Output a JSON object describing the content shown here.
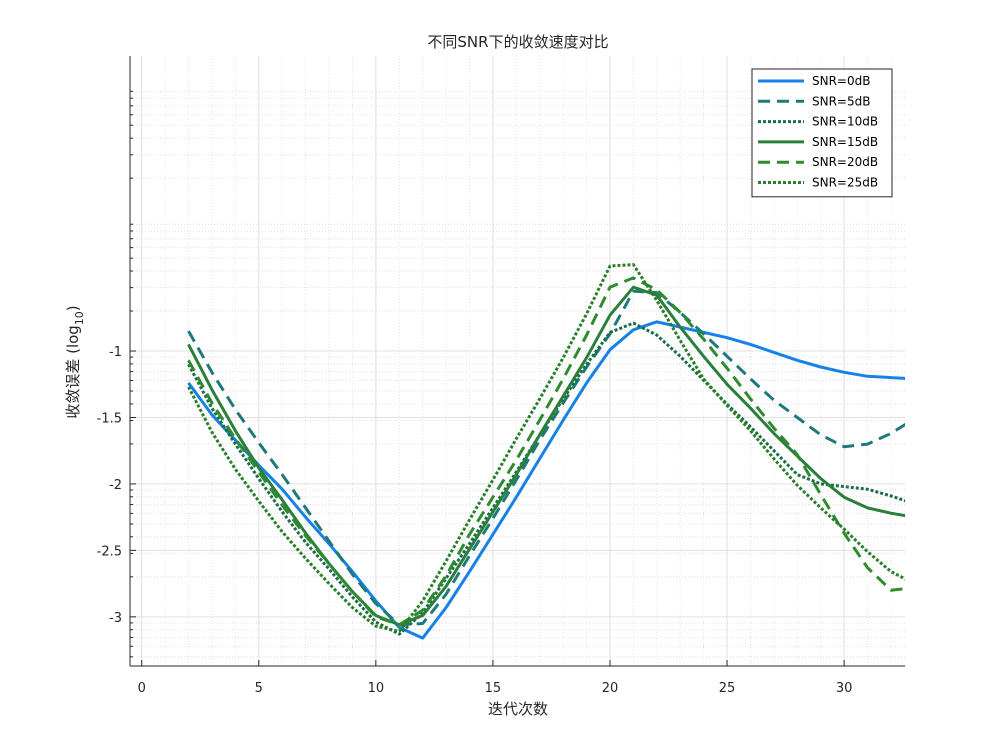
{
  "chart_data": {
    "type": "line",
    "title": "不同SNR下的收敛速度对比",
    "xlabel": "迭代次数",
    "ylabel_main": "收敛误差 (log",
    "ylabel_sub": "10",
    "ylabel_end": ")",
    "xlim": [
      -0.5,
      32.6
    ],
    "ylim": [
      -3.37,
      1.22
    ],
    "y_scale": "log",
    "x_ticks": [
      0,
      5,
      10,
      15,
      20,
      25,
      30
    ],
    "x_tick_labels": [
      "0",
      "5",
      "10",
      "15",
      "20",
      "25",
      "30"
    ],
    "y_ticks": [
      -1,
      -1.5,
      -2,
      -2.5,
      -3
    ],
    "y_tick_labels": [
      "-1",
      "-1.5",
      "-2",
      "-2.5",
      "-3"
    ],
    "grid": true,
    "minor_grid": true,
    "legend_position": "top-right",
    "x": [
      2,
      3,
      4,
      5,
      6,
      7,
      8,
      9,
      10,
      11,
      12,
      13,
      14,
      15,
      16,
      17,
      18,
      19,
      20,
      21,
      22,
      23,
      24,
      25,
      26,
      27,
      28,
      29,
      30,
      31,
      32,
      33
    ],
    "series": [
      {
        "name": "SNR=0dB",
        "color": "#1682e8",
        "dash": "solid",
        "width": 3,
        "values": [
          -1.24,
          -1.48,
          -1.67,
          -1.86,
          -2.04,
          -2.25,
          -2.45,
          -2.66,
          -2.88,
          -3.08,
          -3.16,
          -2.93,
          -2.66,
          -2.38,
          -2.1,
          -1.81,
          -1.52,
          -1.24,
          -0.99,
          -0.84,
          -0.78,
          -0.82,
          -0.86,
          -0.9,
          -0.95,
          -1.01,
          -1.07,
          -1.12,
          -1.16,
          -1.19,
          -1.2,
          -1.21
        ]
      },
      {
        "name": "SNR=5dB",
        "color": "#1e7a7a",
        "dash": "dash",
        "width": 3,
        "values": [
          -0.85,
          -1.16,
          -1.44,
          -1.69,
          -1.93,
          -2.18,
          -2.43,
          -2.68,
          -2.9,
          -3.06,
          -3.05,
          -2.83,
          -2.54,
          -2.26,
          -1.97,
          -1.67,
          -1.39,
          -1.12,
          -0.87,
          -0.55,
          -0.56,
          -0.71,
          -0.87,
          -1.04,
          -1.21,
          -1.37,
          -1.5,
          -1.63,
          -1.72,
          -1.7,
          -1.62,
          -1.51
        ]
      },
      {
        "name": "SNR=10dB",
        "color": "#1c6e48",
        "dash": "dot",
        "width": 3,
        "values": [
          -1.1,
          -1.43,
          -1.7,
          -1.96,
          -2.21,
          -2.44,
          -2.64,
          -2.85,
          -3.04,
          -3.13,
          -2.97,
          -2.71,
          -2.45,
          -2.18,
          -1.91,
          -1.63,
          -1.36,
          -1.1,
          -0.86,
          -0.79,
          -0.88,
          -1.04,
          -1.22,
          -1.4,
          -1.57,
          -1.75,
          -1.93,
          -2.0,
          -2.02,
          -2.04,
          -2.09,
          -2.15
        ]
      },
      {
        "name": "SNR=15dB",
        "color": "#2a7f3a",
        "dash": "solid",
        "width": 3,
        "values": [
          -0.95,
          -1.29,
          -1.6,
          -1.88,
          -2.12,
          -2.37,
          -2.6,
          -2.81,
          -2.99,
          -3.06,
          -2.99,
          -2.77,
          -2.49,
          -2.21,
          -1.93,
          -1.63,
          -1.34,
          -1.05,
          -0.73,
          -0.52,
          -0.58,
          -0.82,
          -1.04,
          -1.25,
          -1.43,
          -1.62,
          -1.79,
          -1.96,
          -2.1,
          -2.18,
          -2.22,
          -2.25
        ]
      },
      {
        "name": "SNR=20dB",
        "color": "#2e8b2e",
        "dash": "dash",
        "width": 3,
        "values": [
          -1.07,
          -1.39,
          -1.66,
          -1.91,
          -2.16,
          -2.39,
          -2.6,
          -2.81,
          -3.0,
          -3.06,
          -2.95,
          -2.69,
          -2.38,
          -2.1,
          -1.82,
          -1.52,
          -1.21,
          -0.88,
          -0.52,
          -0.45,
          -0.54,
          -0.71,
          -0.91,
          -1.13,
          -1.36,
          -1.58,
          -1.78,
          -2.08,
          -2.37,
          -2.63,
          -2.8,
          -2.78
        ]
      },
      {
        "name": "SNR=25dB",
        "color": "#2a7f2a",
        "dash": "dot",
        "width": 3,
        "values": [
          -1.27,
          -1.61,
          -1.89,
          -2.13,
          -2.36,
          -2.56,
          -2.75,
          -2.93,
          -3.07,
          -3.11,
          -2.88,
          -2.58,
          -2.27,
          -1.97,
          -1.66,
          -1.36,
          -1.05,
          -0.72,
          -0.36,
          -0.35,
          -0.62,
          -0.92,
          -1.21,
          -1.41,
          -1.6,
          -1.81,
          -2.01,
          -2.18,
          -2.34,
          -2.51,
          -2.66,
          -2.75
        ]
      }
    ]
  }
}
